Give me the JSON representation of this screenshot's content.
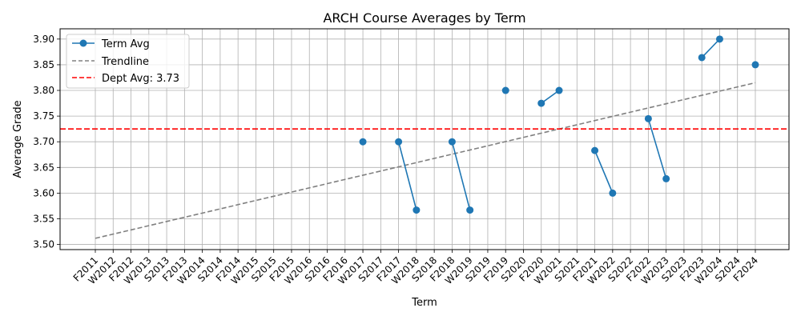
{
  "chart_data": {
    "type": "line",
    "title": "ARCH Course Averages by Term",
    "xlabel": "Term",
    "ylabel": "Average Grade",
    "categories": [
      "F2011",
      "W2012",
      "F2012",
      "W2013",
      "S2013",
      "F2013",
      "W2014",
      "S2014",
      "F2014",
      "W2015",
      "S2015",
      "F2015",
      "W2016",
      "S2016",
      "F2016",
      "W2017",
      "S2017",
      "F2017",
      "W2018",
      "S2018",
      "F2018",
      "W2019",
      "S2019",
      "F2019",
      "S2020",
      "F2020",
      "W2021",
      "S2021",
      "F2021",
      "W2022",
      "S2022",
      "F2022",
      "W2023",
      "S2023",
      "F2023",
      "W2024",
      "S2024",
      "F2024"
    ],
    "ylim": [
      3.49,
      3.92
    ],
    "yticks": [
      3.5,
      3.55,
      3.6,
      3.65,
      3.7,
      3.75,
      3.8,
      3.85,
      3.9
    ],
    "grid": true,
    "legend_position": "top-left",
    "series": [
      {
        "name": "Term Avg",
        "color": "#1f77b4",
        "values": [
          null,
          null,
          null,
          null,
          null,
          null,
          null,
          null,
          null,
          null,
          null,
          null,
          null,
          null,
          null,
          3.7,
          null,
          3.7,
          3.567,
          null,
          3.7,
          3.567,
          null,
          3.8,
          null,
          3.775,
          3.8,
          null,
          3.683,
          3.6,
          null,
          3.745,
          3.628,
          null,
          3.864,
          3.9,
          null,
          3.85
        ]
      }
    ],
    "trendline": {
      "name": "Trendline",
      "color": "#808080",
      "start": 3.512,
      "end": 3.815
    },
    "reference_line": {
      "name": "Dept Avg: 3.73",
      "color": "#ff0000",
      "value": 3.725
    }
  }
}
